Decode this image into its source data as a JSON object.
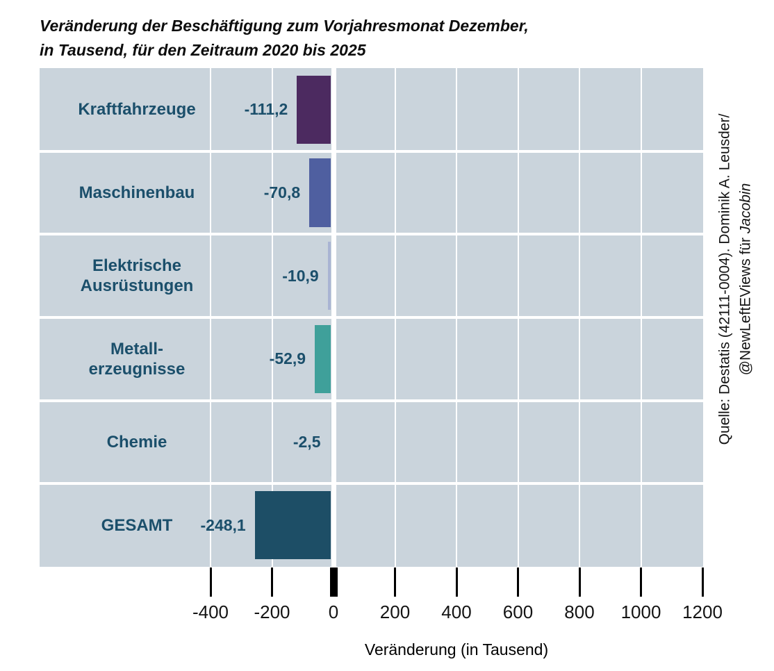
{
  "title": {
    "line1": "Veränderung der Beschäftigung zum Vorjahresmonat Dezember,",
    "line2": "in Tausend, für den Zeitraum 2020 bis 2025"
  },
  "source_note": {
    "line1": "Quelle: Destatis (42111-0004). Dominik A. Leusder/",
    "line2_plain": "@NewLeftEViews für ",
    "line2_italic": "Jacobin"
  },
  "chart_data": {
    "type": "bar",
    "orientation": "horizontal",
    "title": "Veränderung der Beschäftigung zum Vorjahresmonat Dezember, in Tausend, für den Zeitraum 2020 bis 2025",
    "categories": [
      "Kraftfahrzeuge",
      "Maschinenbau",
      "Elektrische Ausrüstungen",
      "Metall-erzeugnisse",
      "Chemie",
      "GESAMT"
    ],
    "category_label_lines": [
      [
        "Kraftfahrzeuge"
      ],
      [
        "Maschinenbau"
      ],
      [
        "Elektrische",
        "Ausrüstungen"
      ],
      [
        "Metall-",
        "erzeugnisse"
      ],
      [
        "Chemie"
      ],
      [
        "GESAMT"
      ]
    ],
    "values": [
      -111.2,
      -70.8,
      -10.9,
      -52.9,
      -2.5,
      -248.1
    ],
    "value_labels": [
      "-111,2",
      "-70,8",
      "-10,9",
      "-52,9",
      "-2,5",
      "-248,1"
    ],
    "bar_colors": [
      "#4c2a60",
      "#4f5fa0",
      "#a9b4d3",
      "#3fa09a",
      "#c4d0d8",
      "#1d4e66"
    ],
    "xlabel": "Veränderung (in Tausend)",
    "xlim": [
      -400,
      1200
    ],
    "xticks": [
      -400,
      -200,
      0,
      200,
      400,
      600,
      800,
      1000,
      1200
    ],
    "xtick_labels": [
      "-400",
      "-200",
      "0",
      "200",
      "400",
      "600",
      "800",
      "1000",
      "1200"
    ],
    "grid": true,
    "legend": false,
    "plot_bg": "#cad4dc",
    "gridline_color": "#ffffff",
    "label_color": "#1b4f6b",
    "tick_color": "#000000"
  }
}
